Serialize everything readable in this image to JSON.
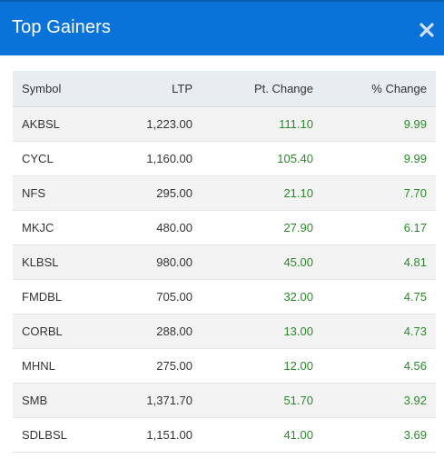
{
  "modal": {
    "title": "Top Gainers",
    "close_icon": "close-icon"
  },
  "colors": {
    "header_bg": "#0a73d9",
    "positive": "#2a8a2a",
    "header_row_bg": "#e8edf1"
  },
  "table": {
    "columns": [
      "Symbol",
      "LTP",
      "Pt. Change",
      "% Change"
    ],
    "rows": [
      {
        "symbol": "AKBSL",
        "ltp": "1,223.00",
        "pt_change": "111.10",
        "pct_change": "9.99"
      },
      {
        "symbol": "CYCL",
        "ltp": "1,160.00",
        "pt_change": "105.40",
        "pct_change": "9.99"
      },
      {
        "symbol": "NFS",
        "ltp": "295.00",
        "pt_change": "21.10",
        "pct_change": "7.70"
      },
      {
        "symbol": "MKJC",
        "ltp": "480.00",
        "pt_change": "27.90",
        "pct_change": "6.17"
      },
      {
        "symbol": "KLBSL",
        "ltp": "980.00",
        "pt_change": "45.00",
        "pct_change": "4.81"
      },
      {
        "symbol": "FMDBL",
        "ltp": "705.00",
        "pt_change": "32.00",
        "pct_change": "4.75"
      },
      {
        "symbol": "CORBL",
        "ltp": "288.00",
        "pt_change": "13.00",
        "pct_change": "4.73"
      },
      {
        "symbol": "MHNL",
        "ltp": "275.00",
        "pt_change": "12.00",
        "pct_change": "4.56"
      },
      {
        "symbol": "SMB",
        "ltp": "1,371.70",
        "pt_change": "51.70",
        "pct_change": "3.92"
      },
      {
        "symbol": "SDLBSL",
        "ltp": "1,151.00",
        "pt_change": "41.00",
        "pct_change": "3.69"
      }
    ]
  }
}
